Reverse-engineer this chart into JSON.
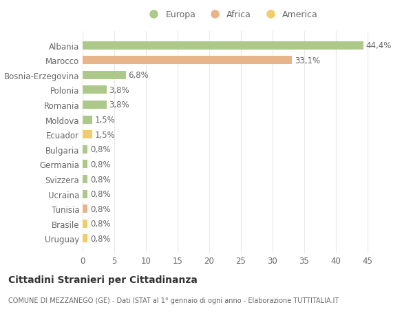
{
  "categories": [
    "Albania",
    "Marocco",
    "Bosnia-Erzegovina",
    "Polonia",
    "Romania",
    "Moldova",
    "Ecuador",
    "Bulgaria",
    "Germania",
    "Svizzera",
    "Ucraina",
    "Tunisia",
    "Brasile",
    "Uruguay"
  ],
  "values": [
    44.4,
    33.1,
    6.8,
    3.8,
    3.8,
    1.5,
    1.5,
    0.8,
    0.8,
    0.8,
    0.8,
    0.8,
    0.8,
    0.8
  ],
  "labels": [
    "44,4%",
    "33,1%",
    "6,8%",
    "3,8%",
    "3,8%",
    "1,5%",
    "1,5%",
    "0,8%",
    "0,8%",
    "0,8%",
    "0,8%",
    "0,8%",
    "0,8%",
    "0,8%"
  ],
  "colors": [
    "#adc98a",
    "#e8b48a",
    "#adc98a",
    "#adc98a",
    "#adc98a",
    "#adc98a",
    "#f0cc6a",
    "#adc98a",
    "#adc98a",
    "#adc98a",
    "#adc98a",
    "#e8b48a",
    "#f0cc6a",
    "#f0cc6a"
  ],
  "legend_labels": [
    "Europa",
    "Africa",
    "America"
  ],
  "legend_colors": [
    "#adc98a",
    "#e8b48a",
    "#f0cc6a"
  ],
  "title": "Cittadini Stranieri per Cittadinanza",
  "subtitle": "COMUNE DI MEZZANEGO (GE) - Dati ISTAT al 1° gennaio di ogni anno - Elaborazione TUTTITALIA.IT",
  "xlim": [
    0,
    47
  ],
  "xticks": [
    0,
    5,
    10,
    15,
    20,
    25,
    30,
    35,
    40,
    45
  ],
  "background_color": "#ffffff",
  "grid_color": "#e8e8e8",
  "text_color": "#666666",
  "label_fontsize": 8.5,
  "bar_height": 0.55
}
